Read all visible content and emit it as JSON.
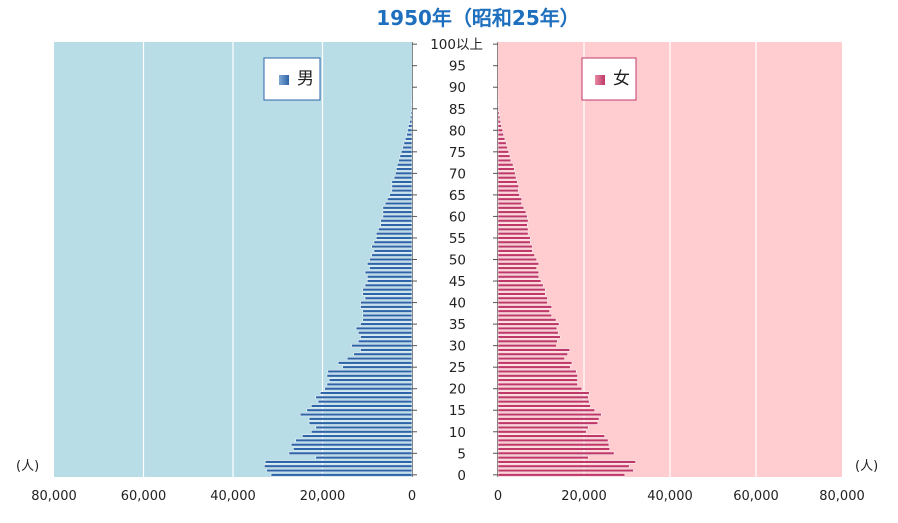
{
  "chart_data": {
    "type": "bar",
    "orientation": "horizontal",
    "title": "1950年（昭和25年）",
    "unit_label": "(人)",
    "age_axis_labels": [
      "0",
      "5",
      "10",
      "15",
      "20",
      "25",
      "30",
      "35",
      "40",
      "45",
      "50",
      "55",
      "60",
      "65",
      "70",
      "75",
      "80",
      "85",
      "90",
      "95",
      "100以上"
    ],
    "age_axis_ticks": [
      0,
      5,
      10,
      15,
      20,
      25,
      30,
      35,
      40,
      45,
      50,
      55,
      60,
      65,
      70,
      75,
      80,
      85,
      90,
      95,
      100
    ],
    "x_ticks": [
      "0",
      "20,000",
      "40,000",
      "60,000",
      "80,000"
    ],
    "xlim": [
      0,
      80000
    ],
    "categories": [
      0,
      1,
      2,
      3,
      4,
      5,
      6,
      7,
      8,
      9,
      10,
      11,
      12,
      13,
      14,
      15,
      16,
      17,
      18,
      19,
      20,
      21,
      22,
      23,
      24,
      25,
      26,
      27,
      28,
      29,
      30,
      31,
      32,
      33,
      34,
      35,
      36,
      37,
      38,
      39,
      40,
      41,
      42,
      43,
      44,
      45,
      46,
      47,
      48,
      49,
      50,
      51,
      52,
      53,
      54,
      55,
      56,
      57,
      58,
      59,
      60,
      61,
      62,
      63,
      64,
      65,
      66,
      67,
      68,
      69,
      70,
      71,
      72,
      73,
      74,
      75,
      76,
      77,
      78,
      79,
      80,
      81,
      82,
      83,
      84,
      85,
      86,
      87,
      88,
      89,
      90,
      91,
      92,
      93,
      94,
      95,
      96,
      97,
      98,
      99,
      100
    ],
    "series": [
      {
        "name": "男",
        "side": "left",
        "color": "#2e64a8",
        "background": "#b8dde6",
        "values": [
          31500,
          32500,
          33000,
          32800,
          21500,
          27500,
          26500,
          27000,
          26000,
          24500,
          22500,
          21500,
          23000,
          23000,
          25000,
          23500,
          22500,
          21000,
          21500,
          20500,
          19500,
          19000,
          18500,
          19000,
          18800,
          15500,
          16500,
          14500,
          13000,
          11500,
          13500,
          12000,
          11500,
          12000,
          12500,
          11500,
          11000,
          11000,
          11000,
          11500,
          11500,
          10500,
          11000,
          11000,
          10500,
          10000,
          10000,
          10500,
          9500,
          10000,
          9500,
          9000,
          8500,
          9000,
          8500,
          8000,
          8000,
          7500,
          7000,
          7000,
          6500,
          6500,
          6500,
          6000,
          5500,
          5000,
          4500,
          4500,
          4500,
          4000,
          3700,
          3500,
          3300,
          3000,
          2700,
          2400,
          2100,
          1800,
          1500,
          1200,
          1000,
          800,
          550,
          400,
          250,
          150,
          80,
          40,
          20,
          10,
          5,
          0,
          0,
          0,
          0,
          0,
          0,
          0,
          0,
          0,
          0
        ]
      },
      {
        "name": "女",
        "side": "right",
        "color": "#bf3868",
        "background": "#ffcccf",
        "values": [
          29500,
          31500,
          30500,
          32000,
          21000,
          27000,
          26000,
          25800,
          25600,
          24800,
          20500,
          21000,
          23200,
          23500,
          24000,
          22500,
          21500,
          21200,
          21000,
          21200,
          19500,
          18500,
          18500,
          18500,
          18200,
          16800,
          17200,
          15500,
          16200,
          16700,
          13600,
          13800,
          14500,
          14000,
          13700,
          14200,
          13500,
          12500,
          12000,
          12500,
          11500,
          11500,
          11000,
          11000,
          10500,
          10000,
          9500,
          9500,
          9000,
          9500,
          9000,
          8500,
          8000,
          8000,
          7500,
          7500,
          7000,
          7000,
          6800,
          7000,
          6800,
          6500,
          6000,
          5500,
          5500,
          5000,
          4700,
          4800,
          4500,
          4200,
          4000,
          3800,
          3500,
          3000,
          2800,
          2500,
          2200,
          1900,
          1600,
          1300,
          1100,
          800,
          600,
          450,
          300,
          180,
          100,
          50,
          25,
          10,
          5,
          0,
          0,
          0,
          0,
          0,
          0,
          0,
          0,
          0,
          0
        ]
      }
    ]
  }
}
